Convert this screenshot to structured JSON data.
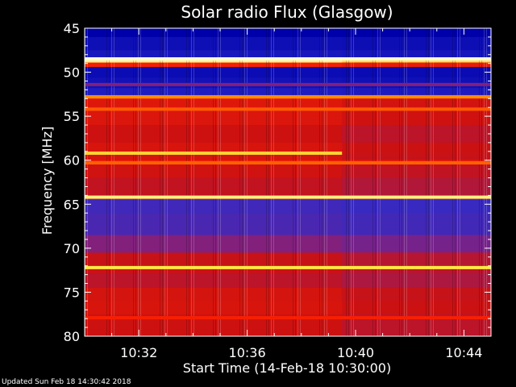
{
  "chart_data": {
    "type": "heatmap",
    "title": "Solar radio Flux (Glasgow)",
    "xlabel": "Start Time (14-Feb-18 10:30:00)",
    "ylabel": "Frequency [MHz]",
    "x_unit": "time",
    "x_range": [
      "10:30:00",
      "10:45:00"
    ],
    "x_ticks": [
      "10:32",
      "10:36",
      "10:40",
      "10:44"
    ],
    "ylim": [
      45,
      80
    ],
    "y_inverted": true,
    "y_ticks": [
      "45",
      "50",
      "55",
      "60",
      "65",
      "70",
      "75",
      "80"
    ],
    "y_tick_values": [
      45,
      50,
      55,
      60,
      65,
      70,
      75,
      80
    ],
    "colormap": [
      "#0000aa",
      "#2a2acc",
      "#7a2288",
      "#cc1111",
      "#ff2200",
      "#ff8800",
      "#ffee44",
      "#ffffff"
    ],
    "frequency_bands": [
      {
        "from": 45.0,
        "to": 46.0,
        "level": 0.0
      },
      {
        "from": 46.0,
        "to": 47.5,
        "level": 0.05
      },
      {
        "from": 47.5,
        "to": 48.3,
        "level": 0.08
      },
      {
        "from": 48.3,
        "to": 48.9,
        "level": 0.9
      },
      {
        "from": 48.9,
        "to": 49.4,
        "level": 0.55
      },
      {
        "from": 49.4,
        "to": 50.6,
        "level": 0.04
      },
      {
        "from": 50.6,
        "to": 51.8,
        "level": 0.06
      },
      {
        "from": 51.8,
        "to": 52.6,
        "level": 0.1
      },
      {
        "from": 52.6,
        "to": 53.0,
        "level": 0.62
      },
      {
        "from": 53.0,
        "to": 54.0,
        "level": 0.48
      },
      {
        "from": 54.0,
        "to": 54.3,
        "level": 0.55
      },
      {
        "from": 54.3,
        "to": 56.0,
        "level": 0.47
      },
      {
        "from": 56.0,
        "to": 58.0,
        "level": 0.43
      },
      {
        "from": 58.0,
        "to": 59.3,
        "level": 0.46
      },
      {
        "from": 59.3,
        "to": 60.0,
        "level": 0.45
      },
      {
        "from": 60.0,
        "to": 60.3,
        "level": 0.55
      },
      {
        "from": 60.3,
        "to": 62.0,
        "level": 0.44
      },
      {
        "from": 62.0,
        "to": 64.0,
        "level": 0.41
      },
      {
        "from": 64.0,
        "to": 64.5,
        "level": 0.38
      },
      {
        "from": 64.5,
        "to": 66.0,
        "level": 0.18
      },
      {
        "from": 66.0,
        "to": 68.5,
        "level": 0.2
      },
      {
        "from": 68.5,
        "to": 70.5,
        "level": 0.3
      },
      {
        "from": 70.5,
        "to": 72.0,
        "level": 0.42
      },
      {
        "from": 72.0,
        "to": 72.8,
        "level": 0.43
      },
      {
        "from": 72.8,
        "to": 74.5,
        "level": 0.4
      },
      {
        "from": 74.5,
        "to": 76.0,
        "level": 0.45
      },
      {
        "from": 76.0,
        "to": 77.5,
        "level": 0.46
      },
      {
        "from": 77.5,
        "to": 80.0,
        "level": 0.43
      }
    ],
    "bright_lines": [
      {
        "freq": 48.5,
        "level": 0.97
      },
      {
        "freq": 51.4,
        "level": 0.3
      },
      {
        "freq": 52.8,
        "level": 0.72
      },
      {
        "freq": 54.2,
        "level": 0.65
      },
      {
        "freq": 60.3,
        "level": 0.66
      },
      {
        "freq": 64.2,
        "level": 0.9
      },
      {
        "freq": 72.2,
        "level": 0.85
      },
      {
        "freq": 77.9,
        "level": 0.55
      }
    ],
    "partial_lines": [
      {
        "freq": 59.2,
        "t_from": "10:30:00",
        "t_to": "10:39:30",
        "level": 0.82
      }
    ],
    "time_change": "10:39:30"
  },
  "footer": {
    "updated_text": "Updated Sun Feb 18 14:30:42 2018"
  }
}
